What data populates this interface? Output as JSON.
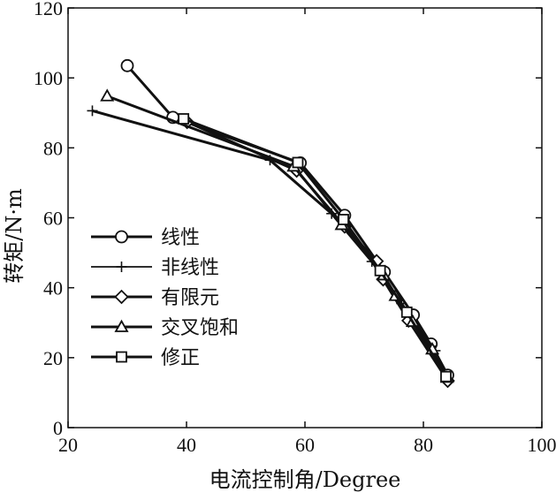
{
  "chart_data": {
    "type": "line",
    "title": "",
    "xlabel": "电流控制角/Degree",
    "ylabel": "转矩/N·m",
    "xlim": [
      20,
      100
    ],
    "ylim": [
      0,
      120
    ],
    "xticks": [
      20,
      40,
      60,
      80,
      100
    ],
    "yticks": [
      0,
      20,
      40,
      60,
      80,
      100,
      120
    ],
    "grid": false,
    "legend_position": "left",
    "series": [
      {
        "name": "线性",
        "marker": "circle",
        "points": [
          [
            30,
            103.5
          ],
          [
            37.7,
            88.7
          ],
          [
            59.2,
            75.7
          ],
          [
            66.7,
            60.7
          ],
          [
            73.4,
            44.5
          ],
          [
            78.3,
            32.2
          ],
          [
            81.3,
            23.9
          ],
          [
            84.1,
            15.0
          ]
        ]
      },
      {
        "name": "非线性",
        "marker": "plus",
        "points": [
          [
            24.1,
            90.6
          ],
          [
            54.1,
            76.5
          ],
          [
            64.5,
            61.2
          ],
          [
            71.3,
            47.5
          ],
          [
            76.3,
            35.5
          ],
          [
            82.0,
            22.0
          ],
          [
            83.8,
            14.5
          ]
        ]
      },
      {
        "name": "有限元",
        "marker": "diamond",
        "points": [
          [
            40.1,
            87.4
          ],
          [
            58.6,
            73.5
          ],
          [
            66.7,
            57.5
          ],
          [
            72.1,
            47.6
          ],
          [
            73.2,
            42.4
          ],
          [
            77.5,
            30.6
          ],
          [
            84.1,
            13.4
          ]
        ]
      },
      {
        "name": "交叉饱和",
        "marker": "triangle",
        "points": [
          [
            26.6,
            94.8
          ],
          [
            58.1,
            74.7
          ],
          [
            66.2,
            58.0
          ],
          [
            73.3,
            43.6
          ],
          [
            75.3,
            37.7
          ],
          [
            78.2,
            30.3
          ],
          [
            81.5,
            22.4
          ],
          [
            84.0,
            14.3
          ]
        ]
      },
      {
        "name": "修正",
        "marker": "square",
        "points": [
          [
            39.5,
            88.3
          ],
          [
            58.8,
            75.8
          ],
          [
            66.5,
            59.5
          ],
          [
            72.7,
            44.9
          ],
          [
            77.2,
            33.0
          ],
          [
            83.8,
            14.6
          ]
        ]
      }
    ]
  }
}
